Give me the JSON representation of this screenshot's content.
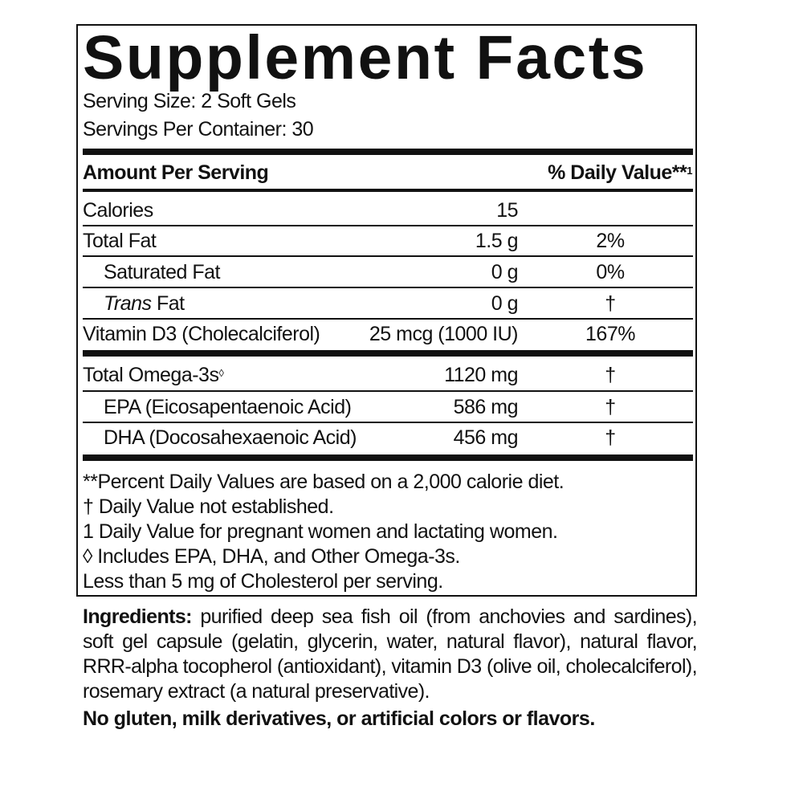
{
  "title": "Supplement Facts",
  "serving_size": "Serving Size: 2 Soft Gels",
  "servings_per_container": "Servings Per Container: 30",
  "header": {
    "amount": "Amount Per Serving",
    "dv": "% Daily Value**",
    "dv_sup": "1"
  },
  "rows": [
    {
      "name": "Calories",
      "amount": "15",
      "dv": ""
    },
    {
      "name": "Total Fat",
      "amount": "1.5 g",
      "dv": "2%"
    },
    {
      "name": "Saturated Fat",
      "amount": "0 g",
      "dv": "0%"
    },
    {
      "name_italic": "Trans",
      "name": " Fat",
      "amount": "0 g",
      "dv": "†"
    },
    {
      "name": "Vitamin D3 (Cholecalciferol)",
      "amount": "25 mcg (1000 IU)",
      "dv": "167%"
    }
  ],
  "rows2": [
    {
      "name": "Total Omega-3s",
      "sup": "◊",
      "amount": "1120 mg",
      "dv": "†"
    },
    {
      "name": "EPA (Eicosapentaenoic Acid)",
      "amount": "586 mg",
      "dv": "†"
    },
    {
      "name": "DHA (Docosahexaenoic Acid)",
      "amount": "456 mg",
      "dv": "†"
    }
  ],
  "footnotes": [
    "**Percent Daily Values are based on a 2,000 calorie diet.",
    "† Daily Value not established.",
    "1 Daily Value for pregnant women and lactating women.",
    "◊ Includes EPA, DHA, and Other Omega-3s.",
    "Less than 5 mg of Cholesterol per serving."
  ],
  "ingredients": {
    "label": "Ingredients:",
    "text": " purified deep sea fish oil (from anchovies and sardines), soft gel capsule (gelatin, glycerin, water, natural flavor), natural flavor, RRR-alpha tocopherol (antioxidant), vitamin D3 (olive oil, cholecalciferol), rosemary extract (a natural preservative)."
  },
  "disclaimer": "No gluten, milk derivatives, or artificial colors or flavors."
}
